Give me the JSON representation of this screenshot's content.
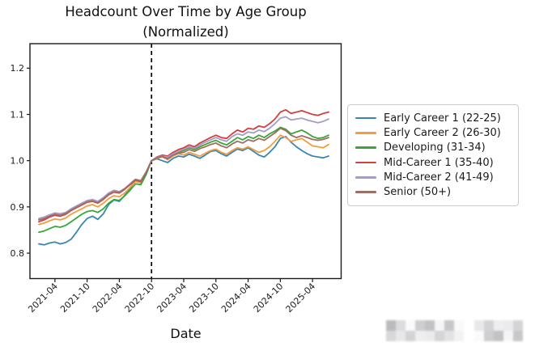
{
  "header": {
    "title_line1": "Headcount Over Time by Age Group",
    "title_line2": "(Normalized)"
  },
  "chart_data": {
    "type": "line",
    "title": "Headcount Over Time by Age Group (Normalized)",
    "xlabel": "Date",
    "ylabel": "",
    "x_unit": "month",
    "x_start": "2021-01",
    "x_end": "2025-07",
    "x_tick_labels": [
      "2021-04",
      "2021-10",
      "2022-04",
      "2022-10",
      "2023-04",
      "2023-10",
      "2024-04",
      "2024-10",
      "2025-04"
    ],
    "x_tick_indices": [
      3,
      9,
      15,
      21,
      27,
      33,
      39,
      45,
      51
    ],
    "yticks": [
      0.8,
      0.9,
      1.0,
      1.1,
      1.2
    ],
    "ylim": [
      0.745,
      1.253
    ],
    "grid": false,
    "legend_position": "right",
    "normalization_line": {
      "label": "2022-10",
      "index": 21,
      "style": "dashed",
      "color": "#000000"
    },
    "axis_color": "#1a1a1a",
    "series": [
      {
        "name": "Early Career 1 (22-25)",
        "color": "#3a86b0",
        "values": [
          0.82,
          0.818,
          0.822,
          0.824,
          0.82,
          0.823,
          0.83,
          0.845,
          0.862,
          0.875,
          0.88,
          0.873,
          0.885,
          0.905,
          0.915,
          0.912,
          0.925,
          0.94,
          0.958,
          0.952,
          0.975,
          1.0,
          1.004,
          1.0,
          0.996,
          1.005,
          1.01,
          1.008,
          1.014,
          1.01,
          1.005,
          1.012,
          1.02,
          1.022,
          1.015,
          1.01,
          1.018,
          1.025,
          1.022,
          1.028,
          1.02,
          1.012,
          1.008,
          1.018,
          1.03,
          1.048,
          1.052,
          1.04,
          1.03,
          1.022,
          1.015,
          1.01,
          1.008,
          1.006,
          1.01
        ]
      },
      {
        "name": "Early Career 2 (26-30)",
        "color": "#f49d3f",
        "values": [
          0.862,
          0.865,
          0.87,
          0.874,
          0.872,
          0.876,
          0.884,
          0.89,
          0.896,
          0.902,
          0.905,
          0.9,
          0.908,
          0.918,
          0.924,
          0.922,
          0.93,
          0.942,
          0.955,
          0.952,
          0.972,
          1.0,
          1.005,
          1.008,
          1.002,
          1.01,
          1.015,
          1.012,
          1.018,
          1.014,
          1.01,
          1.016,
          1.022,
          1.025,
          1.018,
          1.014,
          1.022,
          1.028,
          1.025,
          1.03,
          1.024,
          1.018,
          1.022,
          1.03,
          1.042,
          1.055,
          1.05,
          1.042,
          1.045,
          1.048,
          1.04,
          1.032,
          1.03,
          1.028,
          1.035
        ]
      },
      {
        "name": "Developing (31-34)",
        "color": "#3aa63a",
        "values": [
          0.845,
          0.848,
          0.853,
          0.858,
          0.856,
          0.86,
          0.868,
          0.876,
          0.884,
          0.89,
          0.892,
          0.888,
          0.896,
          0.908,
          0.916,
          0.914,
          0.924,
          0.936,
          0.95,
          0.948,
          0.97,
          1.0,
          1.006,
          1.01,
          1.005,
          1.013,
          1.018,
          1.022,
          1.028,
          1.024,
          1.03,
          1.035,
          1.04,
          1.044,
          1.038,
          1.034,
          1.042,
          1.05,
          1.045,
          1.052,
          1.048,
          1.055,
          1.05,
          1.058,
          1.064,
          1.072,
          1.068,
          1.058,
          1.062,
          1.066,
          1.06,
          1.052,
          1.048,
          1.05,
          1.055
        ]
      },
      {
        "name": "Mid-Career 1 (35-40)",
        "color": "#d63e3e",
        "values": [
          0.868,
          0.872,
          0.878,
          0.882,
          0.88,
          0.884,
          0.892,
          0.898,
          0.904,
          0.91,
          0.912,
          0.908,
          0.916,
          0.926,
          0.932,
          0.93,
          0.938,
          0.948,
          0.958,
          0.955,
          0.975,
          1.0,
          1.008,
          1.012,
          1.01,
          1.018,
          1.024,
          1.028,
          1.034,
          1.03,
          1.038,
          1.044,
          1.05,
          1.055,
          1.05,
          1.048,
          1.058,
          1.066,
          1.062,
          1.07,
          1.068,
          1.075,
          1.072,
          1.08,
          1.09,
          1.105,
          1.11,
          1.102,
          1.105,
          1.108,
          1.104,
          1.1,
          1.098,
          1.102,
          1.105
        ]
      },
      {
        "name": "Mid-Career 2 (41-49)",
        "color": "#a79bc8",
        "values": [
          0.875,
          0.878,
          0.883,
          0.887,
          0.885,
          0.888,
          0.896,
          0.902,
          0.908,
          0.914,
          0.916,
          0.912,
          0.92,
          0.93,
          0.936,
          0.933,
          0.94,
          0.95,
          0.96,
          0.957,
          0.976,
          1.0,
          1.007,
          1.01,
          1.008,
          1.015,
          1.02,
          1.025,
          1.03,
          1.027,
          1.034,
          1.04,
          1.045,
          1.05,
          1.045,
          1.042,
          1.052,
          1.058,
          1.055,
          1.062,
          1.06,
          1.066,
          1.063,
          1.07,
          1.08,
          1.092,
          1.095,
          1.088,
          1.09,
          1.092,
          1.088,
          1.085,
          1.082,
          1.085,
          1.09
        ]
      },
      {
        "name": "Senior (50+)",
        "color": "#9e6d64",
        "values": [
          0.872,
          0.875,
          0.88,
          0.884,
          0.882,
          0.886,
          0.893,
          0.899,
          0.905,
          0.911,
          0.913,
          0.909,
          0.917,
          0.927,
          0.933,
          0.931,
          0.939,
          0.949,
          0.959,
          0.956,
          0.975,
          1.0,
          1.006,
          1.009,
          1.004,
          1.012,
          1.016,
          1.018,
          1.024,
          1.02,
          1.026,
          1.03,
          1.035,
          1.038,
          1.032,
          1.028,
          1.036,
          1.042,
          1.038,
          1.045,
          1.042,
          1.048,
          1.044,
          1.052,
          1.06,
          1.07,
          1.065,
          1.055,
          1.05,
          1.054,
          1.05,
          1.046,
          1.044,
          1.046,
          1.05
        ]
      }
    ]
  }
}
